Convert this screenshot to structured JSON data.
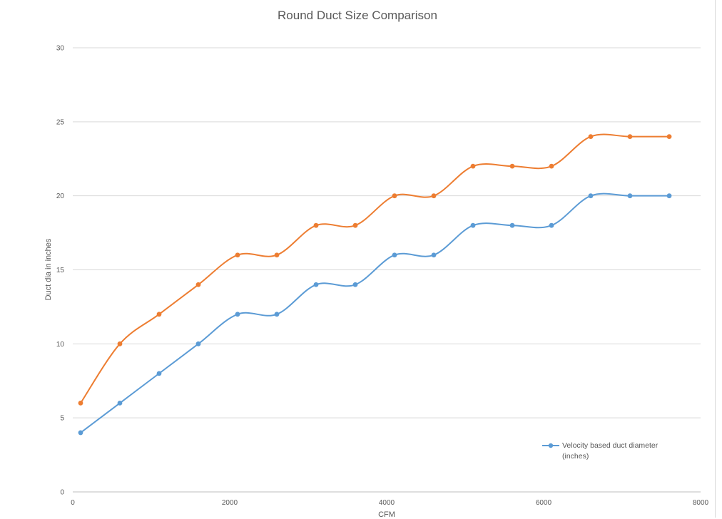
{
  "chart_data": {
    "type": "line",
    "title": "Round Duct Size Comparison",
    "xlabel": "CFM",
    "ylabel": "Duct dia in inches",
    "xlim": [
      0,
      8000
    ],
    "ylim": [
      0,
      30
    ],
    "xticks": [
      0,
      2000,
      4000,
      6000,
      8000
    ],
    "yticks": [
      0,
      5,
      10,
      15,
      20,
      25,
      30
    ],
    "grid": "horizontal",
    "smooth": true,
    "legend_position": "bottom-right",
    "series": [
      {
        "name": "Velocity based duct diameter (inches)",
        "color": "#5b9bd5",
        "x": [
          100,
          600,
          1100,
          1600,
          2100,
          2600,
          3100,
          3600,
          4100,
          4600,
          5100,
          5600,
          6100,
          6600,
          7100,
          7600
        ],
        "y": [
          4,
          6,
          8,
          10,
          12,
          12,
          14,
          14,
          16,
          16,
          18,
          18,
          18,
          20,
          20,
          20
        ]
      },
      {
        "color": "#ed7d31",
        "x": [
          100,
          600,
          1100,
          1600,
          2100,
          2600,
          3100,
          3600,
          4100,
          4600,
          5100,
          5600,
          6100,
          6600,
          7100,
          7600
        ],
        "y": [
          6,
          10,
          12,
          14,
          16,
          16,
          18,
          18,
          20,
          20,
          22,
          22,
          22,
          24,
          24,
          24
        ]
      }
    ]
  }
}
